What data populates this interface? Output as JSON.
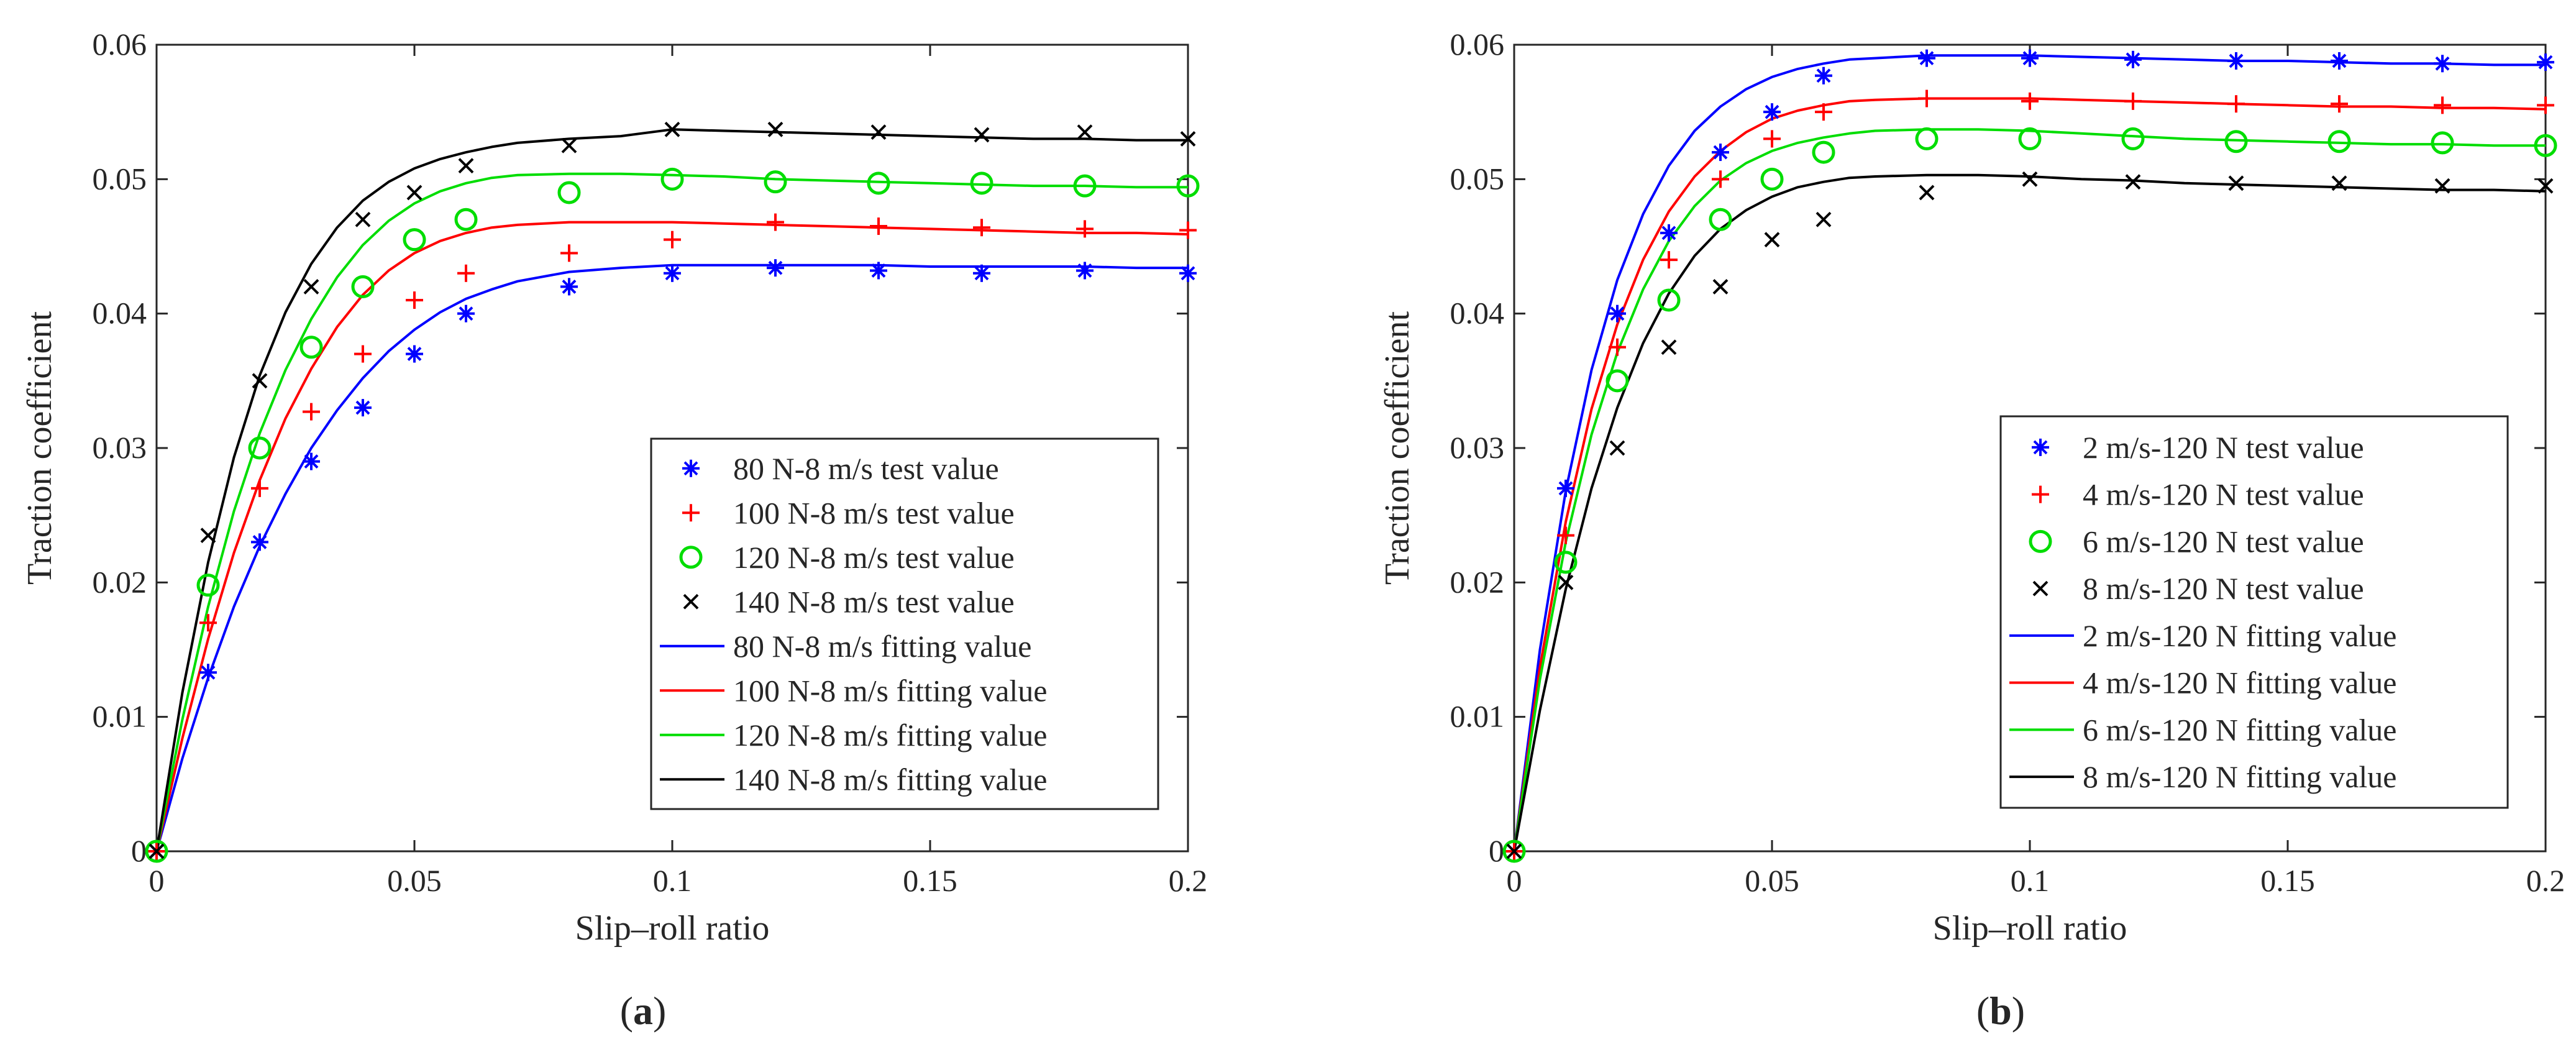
{
  "figure": {
    "panel_labels": [
      "(a)",
      "(b)"
    ],
    "panel_letters": [
      "a",
      "b"
    ]
  },
  "chart_data": [
    {
      "type": "scatter",
      "panel": "a",
      "title": "",
      "xlabel": "Slip–roll ratio",
      "ylabel": "Traction coefficient",
      "xlim": [
        0,
        0.2
      ],
      "ylim": [
        0,
        0.06
      ],
      "xticks": [
        0,
        0.05,
        0.1,
        0.15,
        0.2
      ],
      "xtick_labels": [
        "0",
        "0.05",
        "0.1",
        "0.15",
        "0.2"
      ],
      "yticks": [
        0,
        0.01,
        0.02,
        0.03,
        0.04,
        0.05,
        0.06
      ],
      "ytick_labels": [
        "0",
        "0.01",
        "0.02",
        "0.03",
        "0.04",
        "0.05",
        "0.06"
      ],
      "grid": false,
      "legend_position": "bottom-right",
      "series": [
        {
          "name": "80 N-8 m/s test value",
          "kind": "marker",
          "marker": "asterisk",
          "color": "#0000ff",
          "x": [
            0,
            0.01,
            0.02,
            0.03,
            0.04,
            0.05,
            0.06,
            0.08,
            0.1,
            0.12,
            0.14,
            0.16,
            0.18,
            0.2
          ],
          "y": [
            0,
            0.0133,
            0.023,
            0.029,
            0.033,
            0.037,
            0.04,
            0.042,
            0.043,
            0.0434,
            0.0432,
            0.043,
            0.0432,
            0.043
          ]
        },
        {
          "name": "100 N-8 m/s test value",
          "kind": "marker",
          "marker": "plus",
          "color": "#ff0000",
          "x": [
            0,
            0.01,
            0.02,
            0.03,
            0.04,
            0.05,
            0.06,
            0.08,
            0.1,
            0.12,
            0.14,
            0.16,
            0.18,
            0.2
          ],
          "y": [
            0,
            0.017,
            0.027,
            0.0327,
            0.037,
            0.041,
            0.043,
            0.0445,
            0.0455,
            0.0468,
            0.0465,
            0.0464,
            0.0463,
            0.0462
          ]
        },
        {
          "name": "120 N-8 m/s test value",
          "kind": "marker",
          "marker": "circle",
          "color": "#00dd00",
          "x": [
            0,
            0.01,
            0.02,
            0.03,
            0.04,
            0.05,
            0.06,
            0.08,
            0.1,
            0.12,
            0.14,
            0.16,
            0.18,
            0.2
          ],
          "y": [
            0,
            0.0198,
            0.03,
            0.0375,
            0.042,
            0.0455,
            0.047,
            0.049,
            0.05,
            0.0498,
            0.0497,
            0.0497,
            0.0495,
            0.0495
          ]
        },
        {
          "name": "140 N-8 m/s test value",
          "kind": "marker",
          "marker": "cross",
          "color": "#000000",
          "x": [
            0,
            0.01,
            0.02,
            0.03,
            0.04,
            0.05,
            0.06,
            0.08,
            0.1,
            0.12,
            0.14,
            0.16,
            0.18,
            0.2
          ],
          "y": [
            0,
            0.0235,
            0.035,
            0.042,
            0.047,
            0.049,
            0.051,
            0.0525,
            0.0537,
            0.0537,
            0.0535,
            0.0533,
            0.0535,
            0.053
          ]
        },
        {
          "name": "80 N-8 m/s fitting value",
          "kind": "line",
          "color": "#0000ff",
          "x": [
            0,
            0.005,
            0.01,
            0.015,
            0.02,
            0.025,
            0.03,
            0.035,
            0.04,
            0.045,
            0.05,
            0.055,
            0.06,
            0.065,
            0.07,
            0.08,
            0.09,
            0.1,
            0.11,
            0.12,
            0.13,
            0.14,
            0.15,
            0.16,
            0.17,
            0.18,
            0.19,
            0.2
          ],
          "y": [
            0,
            0.0069,
            0.0129,
            0.0182,
            0.0227,
            0.0266,
            0.03,
            0.0328,
            0.0352,
            0.0372,
            0.0388,
            0.0401,
            0.0411,
            0.0418,
            0.0424,
            0.0431,
            0.0434,
            0.0436,
            0.0436,
            0.0436,
            0.0436,
            0.0436,
            0.0435,
            0.0435,
            0.0435,
            0.0435,
            0.0434,
            0.0434
          ]
        },
        {
          "name": "100 N-8 m/s fitting value",
          "kind": "line",
          "color": "#ff0000",
          "x": [
            0,
            0.005,
            0.01,
            0.015,
            0.02,
            0.025,
            0.03,
            0.035,
            0.04,
            0.045,
            0.05,
            0.055,
            0.06,
            0.065,
            0.07,
            0.08,
            0.09,
            0.1,
            0.11,
            0.12,
            0.13,
            0.14,
            0.15,
            0.16,
            0.17,
            0.18,
            0.19,
            0.2
          ],
          "y": [
            0,
            0.0084,
            0.0158,
            0.0222,
            0.0276,
            0.0322,
            0.0359,
            0.039,
            0.0414,
            0.0432,
            0.0445,
            0.0454,
            0.046,
            0.0464,
            0.0466,
            0.0468,
            0.0468,
            0.0468,
            0.0467,
            0.0466,
            0.0465,
            0.0464,
            0.0463,
            0.0462,
            0.0461,
            0.046,
            0.046,
            0.0459
          ]
        },
        {
          "name": "120 N-8 m/s fitting value",
          "kind": "line",
          "color": "#00dd00",
          "x": [
            0,
            0.005,
            0.01,
            0.015,
            0.02,
            0.025,
            0.03,
            0.035,
            0.04,
            0.045,
            0.05,
            0.055,
            0.06,
            0.065,
            0.07,
            0.08,
            0.09,
            0.1,
            0.11,
            0.12,
            0.13,
            0.14,
            0.15,
            0.16,
            0.17,
            0.18,
            0.19,
            0.2
          ],
          "y": [
            0,
            0.0098,
            0.0182,
            0.0253,
            0.0311,
            0.0358,
            0.0396,
            0.0427,
            0.0451,
            0.0469,
            0.0482,
            0.0491,
            0.0497,
            0.0501,
            0.0503,
            0.0504,
            0.0504,
            0.0503,
            0.0502,
            0.05,
            0.0499,
            0.0498,
            0.0497,
            0.0496,
            0.0495,
            0.0495,
            0.0494,
            0.0494
          ]
        },
        {
          "name": "140 N-8 m/s fitting value",
          "kind": "line",
          "color": "#000000",
          "x": [
            0,
            0.005,
            0.01,
            0.015,
            0.02,
            0.025,
            0.03,
            0.035,
            0.04,
            0.045,
            0.05,
            0.055,
            0.06,
            0.065,
            0.07,
            0.08,
            0.09,
            0.1,
            0.11,
            0.12,
            0.13,
            0.14,
            0.15,
            0.16,
            0.17,
            0.18,
            0.19,
            0.2
          ],
          "y": [
            0,
            0.0118,
            0.0215,
            0.0293,
            0.0354,
            0.0401,
            0.0437,
            0.0464,
            0.0484,
            0.0498,
            0.0508,
            0.0515,
            0.052,
            0.0524,
            0.0527,
            0.053,
            0.0532,
            0.0537,
            0.0536,
            0.0535,
            0.0534,
            0.0533,
            0.0532,
            0.0531,
            0.053,
            0.053,
            0.0529,
            0.0529
          ]
        }
      ]
    },
    {
      "type": "scatter",
      "panel": "b",
      "title": "",
      "xlabel": "Slip–roll ratio",
      "ylabel": "Traction coefficient",
      "xlim": [
        0,
        0.2
      ],
      "ylim": [
        0,
        0.06
      ],
      "xticks": [
        0,
        0.05,
        0.1,
        0.15,
        0.2
      ],
      "xtick_labels": [
        "0",
        "0.05",
        "0.1",
        "0.15",
        "0.2"
      ],
      "yticks": [
        0,
        0.01,
        0.02,
        0.03,
        0.04,
        0.05,
        0.06
      ],
      "ytick_labels": [
        "0",
        "0.01",
        "0.02",
        "0.03",
        "0.04",
        "0.05",
        "0.06"
      ],
      "grid": false,
      "legend_position": "bottom-right",
      "series": [
        {
          "name": "2 m/s-120 N test value",
          "kind": "marker",
          "marker": "asterisk",
          "color": "#0000ff",
          "x": [
            0,
            0.01,
            0.02,
            0.03,
            0.04,
            0.05,
            0.06,
            0.08,
            0.1,
            0.12,
            0.14,
            0.16,
            0.18,
            0.2
          ],
          "y": [
            0,
            0.027,
            0.04,
            0.046,
            0.052,
            0.055,
            0.0577,
            0.059,
            0.059,
            0.0589,
            0.0588,
            0.0588,
            0.0586,
            0.0587
          ]
        },
        {
          "name": "4 m/s-120 N test value",
          "kind": "marker",
          "marker": "plus",
          "color": "#ff0000",
          "x": [
            0,
            0.01,
            0.02,
            0.03,
            0.04,
            0.05,
            0.06,
            0.08,
            0.1,
            0.12,
            0.14,
            0.16,
            0.18,
            0.2
          ],
          "y": [
            0,
            0.0235,
            0.0375,
            0.044,
            0.05,
            0.053,
            0.055,
            0.056,
            0.0558,
            0.0558,
            0.0556,
            0.0556,
            0.0555,
            0.0555
          ]
        },
        {
          "name": "6 m/s-120 N test value",
          "kind": "marker",
          "marker": "circle",
          "color": "#00dd00",
          "x": [
            0,
            0.01,
            0.02,
            0.03,
            0.04,
            0.05,
            0.06,
            0.08,
            0.1,
            0.12,
            0.14,
            0.16,
            0.18,
            0.2
          ],
          "y": [
            0,
            0.0215,
            0.035,
            0.041,
            0.047,
            0.05,
            0.052,
            0.053,
            0.053,
            0.053,
            0.0528,
            0.0528,
            0.0527,
            0.0525
          ]
        },
        {
          "name": "8 m/s-120 N test value",
          "kind": "marker",
          "marker": "cross",
          "color": "#000000",
          "x": [
            0,
            0.01,
            0.02,
            0.03,
            0.04,
            0.05,
            0.06,
            0.08,
            0.1,
            0.12,
            0.14,
            0.16,
            0.18,
            0.2
          ],
          "y": [
            0,
            0.02,
            0.03,
            0.0375,
            0.042,
            0.0455,
            0.047,
            0.049,
            0.05,
            0.0498,
            0.0497,
            0.0497,
            0.0495,
            0.0495
          ]
        },
        {
          "name": "2 m/s-120 N fitting value",
          "kind": "line",
          "color": "#0000ff",
          "x": [
            0,
            0.005,
            0.01,
            0.015,
            0.02,
            0.025,
            0.03,
            0.035,
            0.04,
            0.045,
            0.05,
            0.055,
            0.06,
            0.065,
            0.07,
            0.08,
            0.09,
            0.1,
            0.11,
            0.12,
            0.13,
            0.14,
            0.15,
            0.16,
            0.17,
            0.18,
            0.19,
            0.2
          ],
          "y": [
            0,
            0.015,
            0.0268,
            0.0358,
            0.0425,
            0.0474,
            0.051,
            0.0536,
            0.0554,
            0.0567,
            0.0576,
            0.0582,
            0.0586,
            0.0589,
            0.059,
            0.0592,
            0.0592,
            0.0592,
            0.0591,
            0.059,
            0.0589,
            0.0588,
            0.0588,
            0.0587,
            0.0586,
            0.0586,
            0.0585,
            0.0585
          ]
        },
        {
          "name": "4 m/s-120 N fitting value",
          "kind": "line",
          "color": "#ff0000",
          "x": [
            0,
            0.005,
            0.01,
            0.015,
            0.02,
            0.025,
            0.03,
            0.035,
            0.04,
            0.045,
            0.05,
            0.055,
            0.06,
            0.065,
            0.07,
            0.08,
            0.09,
            0.1,
            0.11,
            0.12,
            0.13,
            0.14,
            0.15,
            0.16,
            0.17,
            0.18,
            0.19,
            0.2
          ],
          "y": [
            0,
            0.0137,
            0.0245,
            0.0329,
            0.0392,
            0.044,
            0.0476,
            0.0502,
            0.0521,
            0.0535,
            0.0545,
            0.0551,
            0.0555,
            0.0558,
            0.0559,
            0.056,
            0.056,
            0.056,
            0.0559,
            0.0558,
            0.0557,
            0.0556,
            0.0555,
            0.0554,
            0.0554,
            0.0553,
            0.0553,
            0.0552
          ]
        },
        {
          "name": "6 m/s-120 N fitting value",
          "kind": "line",
          "color": "#00dd00",
          "x": [
            0,
            0.005,
            0.01,
            0.015,
            0.02,
            0.025,
            0.03,
            0.035,
            0.04,
            0.045,
            0.05,
            0.055,
            0.06,
            0.065,
            0.07,
            0.08,
            0.09,
            0.1,
            0.11,
            0.12,
            0.13,
            0.14,
            0.15,
            0.16,
            0.17,
            0.18,
            0.19,
            0.2
          ],
          "y": [
            0,
            0.0128,
            0.023,
            0.031,
            0.0371,
            0.0418,
            0.0454,
            0.048,
            0.0499,
            0.0512,
            0.0521,
            0.0527,
            0.0531,
            0.0534,
            0.0536,
            0.0537,
            0.0537,
            0.0536,
            0.0534,
            0.0532,
            0.053,
            0.0529,
            0.0528,
            0.0527,
            0.0526,
            0.0526,
            0.0525,
            0.0525
          ]
        },
        {
          "name": "8 m/s-120 N fitting value",
          "kind": "line",
          "color": "#000000",
          "x": [
            0,
            0.005,
            0.01,
            0.015,
            0.02,
            0.025,
            0.03,
            0.035,
            0.04,
            0.045,
            0.05,
            0.055,
            0.06,
            0.065,
            0.07,
            0.08,
            0.09,
            0.1,
            0.11,
            0.12,
            0.13,
            0.14,
            0.15,
            0.16,
            0.17,
            0.18,
            0.19,
            0.2
          ],
          "y": [
            0,
            0.0105,
            0.0195,
            0.027,
            0.033,
            0.0378,
            0.0415,
            0.0443,
            0.0463,
            0.0477,
            0.0487,
            0.0494,
            0.0498,
            0.0501,
            0.0502,
            0.0503,
            0.0503,
            0.0502,
            0.05,
            0.0499,
            0.0497,
            0.0496,
            0.0495,
            0.0494,
            0.0493,
            0.0492,
            0.0492,
            0.0491
          ]
        }
      ]
    }
  ]
}
